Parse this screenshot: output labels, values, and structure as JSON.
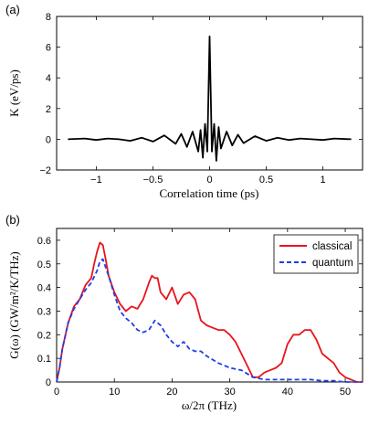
{
  "chart_data": [
    {
      "panel": "(a)",
      "type": "line",
      "title": "",
      "xlabel": "Correlation time (ps)",
      "ylabel": "K (eV/ps)",
      "xlim": [
        -1.35,
        1.35
      ],
      "ylim": [
        -2,
        8
      ],
      "xticks": [
        -1,
        -0.5,
        0,
        0.5,
        1
      ],
      "xtick_labels": [
        "−1",
        "−0.5",
        "0",
        "0.5",
        "1"
      ],
      "yticks": [
        -2,
        0,
        2,
        4,
        6,
        8
      ],
      "ytick_labels": [
        "−2",
        "0",
        "2",
        "4",
        "6",
        "8"
      ],
      "grid": false,
      "series": [
        {
          "color": "#000000",
          "style": "solid",
          "x": [
            -1.25,
            -1.1,
            -1.0,
            -0.9,
            -0.8,
            -0.7,
            -0.6,
            -0.5,
            -0.4,
            -0.3,
            -0.25,
            -0.2,
            -0.15,
            -0.1,
            -0.08,
            -0.06,
            -0.04,
            -0.02,
            0.0,
            0.02,
            0.04,
            0.06,
            0.08,
            0.1,
            0.15,
            0.2,
            0.25,
            0.3,
            0.4,
            0.5,
            0.6,
            0.7,
            0.8,
            0.9,
            1.0,
            1.1,
            1.25
          ],
          "y": [
            0.0,
            0.05,
            -0.05,
            0.05,
            0.0,
            -0.1,
            0.1,
            -0.15,
            0.25,
            -0.3,
            0.35,
            -0.5,
            0.5,
            -0.8,
            0.6,
            -1.2,
            1.0,
            -0.8,
            6.7,
            -0.8,
            1.0,
            -1.4,
            0.8,
            -0.6,
            0.5,
            -0.4,
            0.3,
            -0.25,
            0.2,
            -0.1,
            0.1,
            -0.05,
            0.05,
            0.0,
            -0.05,
            0.05,
            0.0
          ]
        }
      ]
    },
    {
      "panel": "(b)",
      "type": "line",
      "title": "",
      "xlabel": "ω/2π (THz)",
      "ylabel": "G(ω) (GW/m²/K/THz)",
      "xlim": [
        0,
        53
      ],
      "ylim": [
        0,
        0.65
      ],
      "xticks": [
        0,
        10,
        20,
        30,
        40,
        50
      ],
      "xtick_labels": [
        "0",
        "10",
        "20",
        "30",
        "40",
        "50"
      ],
      "yticks": [
        0,
        0.1,
        0.2,
        0.3,
        0.4,
        0.5,
        0.6
      ],
      "ytick_labels": [
        "0",
        "0.1",
        "0.2",
        "0.3",
        "0.4",
        "0.5",
        "0.6"
      ],
      "grid": false,
      "legend": {
        "placement": "top-right",
        "entries": [
          "classical",
          "quantum"
        ]
      },
      "series": [
        {
          "name": "classical",
          "color": "#e8141c",
          "style": "solid",
          "x": [
            0,
            0.5,
            1,
            2,
            3,
            4,
            5,
            6,
            6.5,
            7,
            7.5,
            8,
            8.5,
            9,
            10,
            11,
            12,
            13,
            14,
            15,
            16,
            16.5,
            17,
            17.5,
            18,
            19,
            20,
            21,
            22,
            23,
            24,
            25,
            26,
            27,
            28,
            29,
            30,
            31,
            32,
            33,
            34,
            35,
            36,
            37,
            38,
            39,
            40,
            41,
            42,
            43,
            44,
            45,
            46,
            47,
            48,
            49,
            50,
            51,
            52,
            53
          ],
          "y": [
            0.0,
            0.06,
            0.14,
            0.25,
            0.32,
            0.35,
            0.41,
            0.44,
            0.5,
            0.55,
            0.59,
            0.58,
            0.52,
            0.45,
            0.38,
            0.33,
            0.3,
            0.32,
            0.31,
            0.35,
            0.42,
            0.45,
            0.44,
            0.44,
            0.38,
            0.35,
            0.4,
            0.33,
            0.37,
            0.38,
            0.35,
            0.26,
            0.24,
            0.23,
            0.22,
            0.22,
            0.2,
            0.17,
            0.12,
            0.07,
            0.02,
            0.02,
            0.04,
            0.05,
            0.06,
            0.08,
            0.16,
            0.2,
            0.2,
            0.22,
            0.22,
            0.18,
            0.12,
            0.1,
            0.08,
            0.04,
            0.02,
            0.01,
            0.0,
            0.0
          ]
        },
        {
          "name": "quantum",
          "color": "#1f3ee8",
          "style": "dashed",
          "x": [
            0,
            0.5,
            1,
            2,
            3,
            4,
            5,
            6,
            7,
            7.5,
            8,
            9,
            10,
            11,
            12,
            13,
            14,
            15,
            16,
            17,
            18,
            19,
            20,
            21,
            22,
            23,
            24,
            25,
            26,
            28,
            30,
            32,
            34,
            36,
            38,
            40,
            42,
            44,
            46,
            48,
            50,
            52,
            53
          ],
          "y": [
            0.0,
            0.06,
            0.14,
            0.25,
            0.31,
            0.35,
            0.39,
            0.42,
            0.47,
            0.51,
            0.52,
            0.45,
            0.37,
            0.3,
            0.27,
            0.25,
            0.22,
            0.21,
            0.22,
            0.26,
            0.24,
            0.2,
            0.17,
            0.15,
            0.17,
            0.14,
            0.13,
            0.13,
            0.11,
            0.08,
            0.06,
            0.05,
            0.02,
            0.01,
            0.01,
            0.01,
            0.01,
            0.01,
            0.005,
            0.005,
            0.0,
            0.0,
            0.0
          ]
        }
      ]
    }
  ]
}
